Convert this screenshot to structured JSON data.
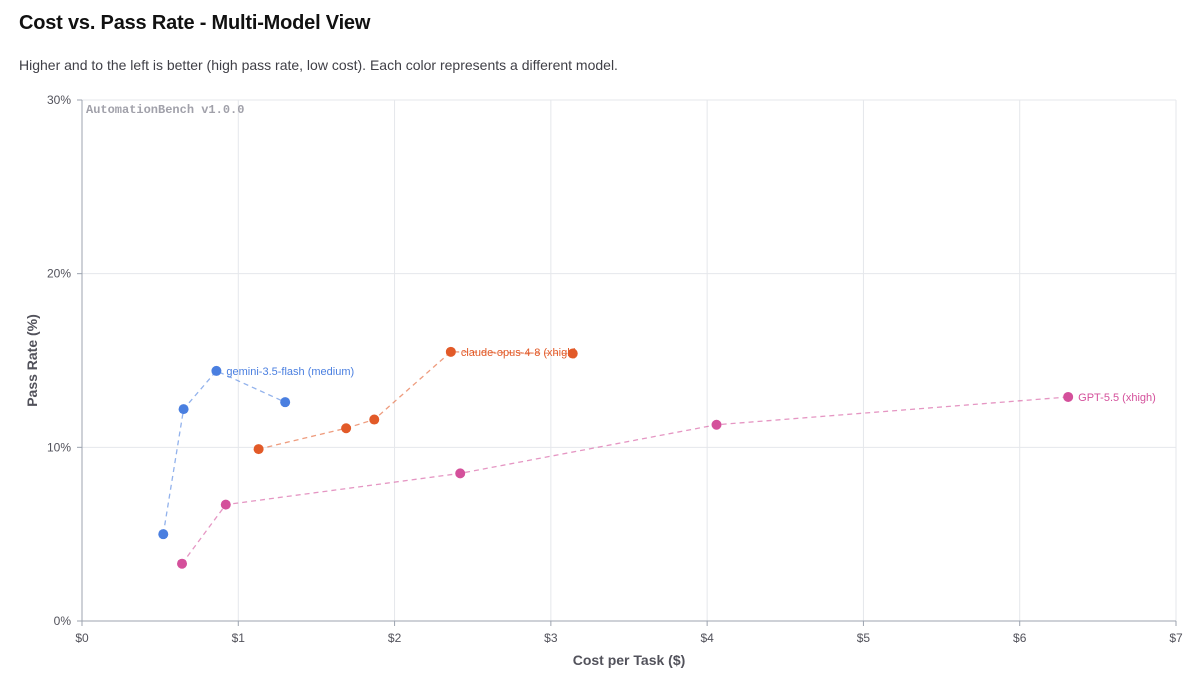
{
  "header": {
    "title": "Cost vs. Pass Rate - Multi-Model View",
    "subtitle": "Higher and to the left is better (high pass rate, low cost). Each color represents a different model."
  },
  "chart_data": {
    "type": "scatter",
    "watermark": "AutomationBench v1.0.0",
    "xlabel": "Cost per Task ($)",
    "ylabel": "Pass Rate (%)",
    "xlim": [
      0,
      7
    ],
    "ylim": [
      0,
      30
    ],
    "x_ticks": [
      {
        "value": 0,
        "label": "$0"
      },
      {
        "value": 1,
        "label": "$1"
      },
      {
        "value": 2,
        "label": "$2"
      },
      {
        "value": 3,
        "label": "$3"
      },
      {
        "value": 4,
        "label": "$4"
      },
      {
        "value": 5,
        "label": "$5"
      },
      {
        "value": 6,
        "label": "$6"
      },
      {
        "value": 7,
        "label": "$7"
      }
    ],
    "y_ticks": [
      {
        "value": 0,
        "label": "0%"
      },
      {
        "value": 10,
        "label": "10%"
      },
      {
        "value": 20,
        "label": "20%"
      },
      {
        "value": 30,
        "label": "30%"
      }
    ],
    "grid": true,
    "connected_by": "dashed-line",
    "series": [
      {
        "name": "gemini-3.5-flash (medium)",
        "color": "#4a7fe0",
        "label_point_index": 2,
        "points": [
          {
            "x": 0.52,
            "y": 5.0
          },
          {
            "x": 0.65,
            "y": 12.2
          },
          {
            "x": 0.86,
            "y": 14.4
          },
          {
            "x": 1.3,
            "y": 12.6
          }
        ]
      },
      {
        "name": "claude-opus-4-8 (xhigh)",
        "color": "#e25a28",
        "label_point_index": 3,
        "points": [
          {
            "x": 1.13,
            "y": 9.9
          },
          {
            "x": 1.69,
            "y": 11.1
          },
          {
            "x": 1.87,
            "y": 11.6
          },
          {
            "x": 2.36,
            "y": 15.5
          },
          {
            "x": 3.14,
            "y": 15.4
          }
        ]
      },
      {
        "name": "GPT-5.5 (xhigh)",
        "color": "#d4509b",
        "label_point_index": 4,
        "points": [
          {
            "x": 0.64,
            "y": 3.3
          },
          {
            "x": 0.92,
            "y": 6.7
          },
          {
            "x": 2.42,
            "y": 8.5
          },
          {
            "x": 4.06,
            "y": 11.3
          },
          {
            "x": 6.31,
            "y": 12.9
          }
        ]
      }
    ]
  }
}
